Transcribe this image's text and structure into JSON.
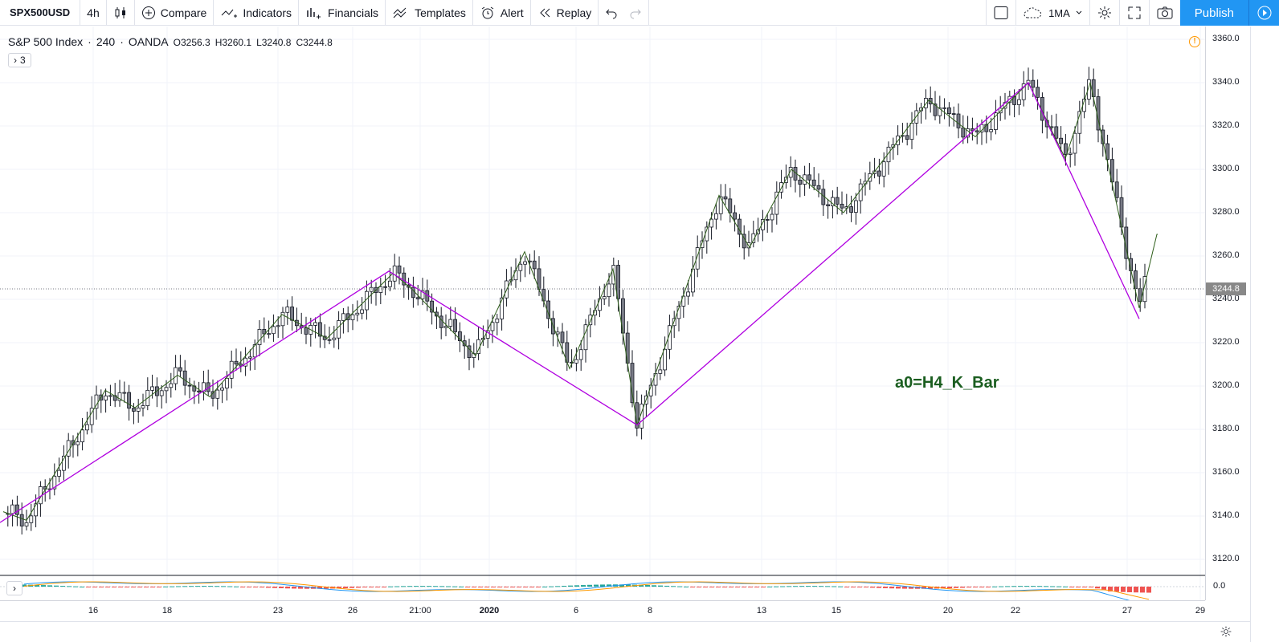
{
  "toolbar": {
    "symbol": "SPX500USD",
    "interval": "4h",
    "compare_label": "Compare",
    "indicators_label": "Indicators",
    "financials_label": "Financials",
    "templates_label": "Templates",
    "alert_label": "Alert",
    "replay_label": "Replay",
    "cloud_label": "1MA",
    "publish_label": "Publish"
  },
  "legend": {
    "name": "S&P 500 Index",
    "interval": "240",
    "source": "OANDA",
    "open": "O3256.3",
    "high": "H3260.1",
    "low": "L3240.8",
    "close": "C3244.8",
    "collapse_count": "3"
  },
  "annotation": "a0=H4_K_Bar",
  "last_price_label": "3244.8",
  "oscillator_zero": "0.0",
  "chart_data": {
    "type": "candlestick",
    "instrument": "SPX500USD",
    "yaxis_ticks": [
      "3360.0",
      "3340.0",
      "3320.0",
      "3300.0",
      "3280.0",
      "3260.0",
      "3240.0",
      "3220.0",
      "3200.0",
      "3180.0",
      "3160.0",
      "3140.0",
      "3120.0"
    ],
    "ylim": [
      3112,
      3364
    ],
    "xaxis_ticks": [
      "16",
      "18",
      "23",
      "26",
      "21:00",
      "2020",
      "6",
      "8",
      "13",
      "15",
      "20",
      "22",
      "27",
      "29"
    ],
    "last_price": 3244.8,
    "pivots_green": [
      3142,
      3138,
      3198,
      3190,
      3205,
      3195,
      3233,
      3222,
      3252,
      3245,
      3214,
      3262,
      3208,
      3254,
      3182,
      3288,
      3264,
      3300,
      3280,
      3332,
      3315,
      3340,
      3305,
      3340,
      3236,
      3270
    ],
    "pivots_purple": [
      3137,
      3253,
      3182,
      3340,
      3231
    ],
    "colors": {
      "zigzag_green": "#2e5e1a",
      "zigzag_purple": "#b000e0",
      "annotation": "#1b5e20",
      "publish": "#2196f3"
    }
  }
}
